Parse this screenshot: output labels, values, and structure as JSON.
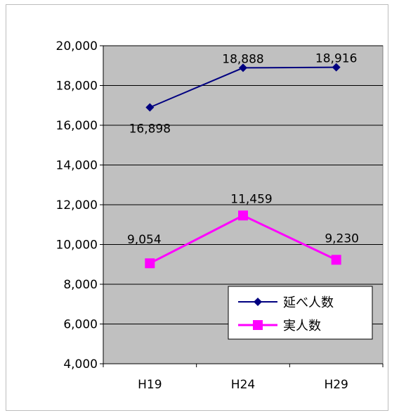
{
  "chart_data": {
    "type": "line",
    "categories": [
      "H19",
      "H24",
      "H29"
    ],
    "ylim": [
      4000,
      20000
    ],
    "ytick_step": 2000,
    "y_tick_labels": [
      "4,000",
      "6,000",
      "8,000",
      "10,000",
      "12,000",
      "14,000",
      "16,000",
      "18,000",
      "20,000"
    ],
    "grid": true,
    "legend_position": "bottom-right",
    "plot_background": "#c0c0c0",
    "series": [
      {
        "name": "延べ人数",
        "values": [
          16898,
          18888,
          18916
        ],
        "labels": [
          "16,898",
          "18,888",
          "18,916"
        ],
        "color": "#000080",
        "marker": "diamond"
      },
      {
        "name": "実人数",
        "values": [
          9054,
          11459,
          9230
        ],
        "labels": [
          "9,054",
          "11,459",
          "9,230"
        ],
        "color": "#ff00ff",
        "marker": "square"
      }
    ]
  }
}
